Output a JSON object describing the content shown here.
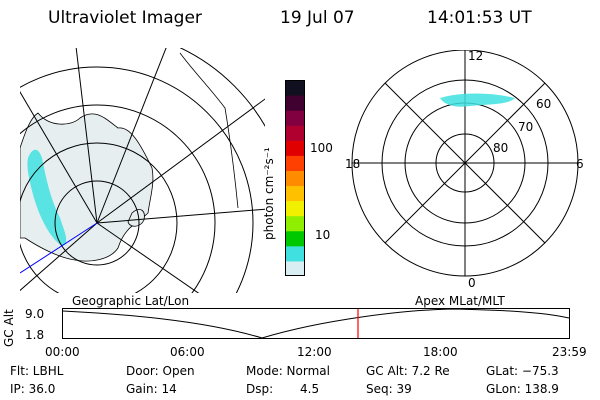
{
  "header": {
    "title": "Ultraviolet Imager",
    "date": "19 Jul 07",
    "time": "14:01:53 UT"
  },
  "left_panel": {
    "label": "Geographic Lat/Lon",
    "colors": {
      "aurora": "#40e0e0",
      "land": "#cfd8dc",
      "grid": "#000000",
      "blue_line": "#0000ff"
    }
  },
  "color_bar": {
    "unit": "photon cm⁻²s⁻¹",
    "ticks": [
      "100",
      "10"
    ],
    "colors": [
      "#d8eef2",
      "#40e0e0",
      "#00c800",
      "#90ee00",
      "#f0f000",
      "#ffc000",
      "#ff8c00",
      "#ff4000",
      "#e00000",
      "#b00030",
      "#800040",
      "#400030",
      "#101020"
    ]
  },
  "right_panel": {
    "label": "Apex MLat/MLT",
    "mlt_labels": {
      "top": "12",
      "left": "18",
      "right": "6",
      "bottom": "0"
    },
    "lat_labels": [
      "60",
      "70",
      "80"
    ]
  },
  "timeline": {
    "ylabel": "GC Alt",
    "yticks": [
      "9.0",
      "1.8"
    ],
    "xticks": [
      "00:00",
      "06:00",
      "12:00",
      "18:00",
      "23:59"
    ],
    "marker_color": "#ff0000"
  },
  "footer": {
    "flt": "Flt: LBHL",
    "ip": "IP: 36.0",
    "door": "Door: Open",
    "gain": "Gain: 14",
    "mode": "Mode: Normal",
    "dsp_label": "Dsp:",
    "dsp_value": "4.5",
    "gc_alt": "GC Alt: 7.2 Re",
    "seq": "Seq: 39",
    "glat": "GLat: −75.3",
    "glon": "GLon: 138.9"
  }
}
